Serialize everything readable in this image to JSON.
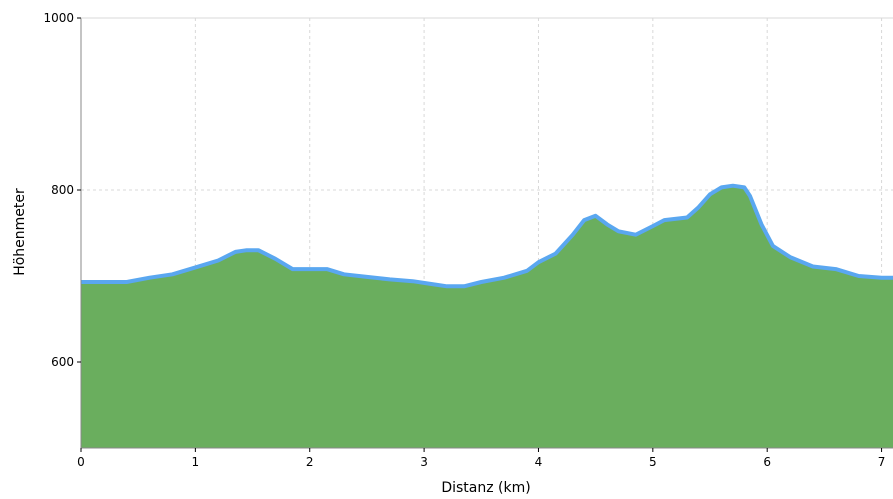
{
  "chart_data": {
    "type": "area",
    "title": "",
    "xlabel": "Distanz (km)",
    "ylabel": "Höhenmeter",
    "xlim": [
      0,
      7.1
    ],
    "ylim": [
      500,
      1000
    ],
    "x_ticks": [
      0,
      1,
      2,
      3,
      4,
      5,
      6,
      7
    ],
    "y_ticks": [
      600,
      800,
      1000
    ],
    "grid": true,
    "legend": "none",
    "colors": {
      "fill": "#6aae5e",
      "line": "#5aa7f0",
      "grid": "#d8d8d8",
      "axis": "#888888"
    },
    "series": [
      {
        "x": [
          0,
          0.2,
          0.4,
          0.6,
          0.8,
          1.0,
          1.2,
          1.35,
          1.45,
          1.55,
          1.7,
          1.85,
          2.0,
          2.15,
          2.3,
          2.5,
          2.7,
          2.9,
          3.1,
          3.2,
          3.35,
          3.5,
          3.7,
          3.9,
          4.0,
          4.15,
          4.3,
          4.4,
          4.5,
          4.6,
          4.7,
          4.85,
          5.0,
          5.1,
          5.3,
          5.4,
          5.5,
          5.6,
          5.7,
          5.8,
          5.85,
          5.95,
          6.05,
          6.2,
          6.4,
          6.6,
          6.8,
          7.0,
          7.1
        ],
        "y": [
          693,
          693,
          693,
          698,
          702,
          710,
          718,
          728,
          730,
          730,
          720,
          708,
          708,
          708,
          702,
          699,
          696,
          694,
          690,
          688,
          688,
          693,
          698,
          706,
          716,
          726,
          748,
          765,
          770,
          760,
          752,
          748,
          758,
          765,
          768,
          780,
          795,
          803,
          805,
          803,
          793,
          760,
          735,
          722,
          711,
          708,
          700,
          698,
          698
        ]
      }
    ]
  }
}
